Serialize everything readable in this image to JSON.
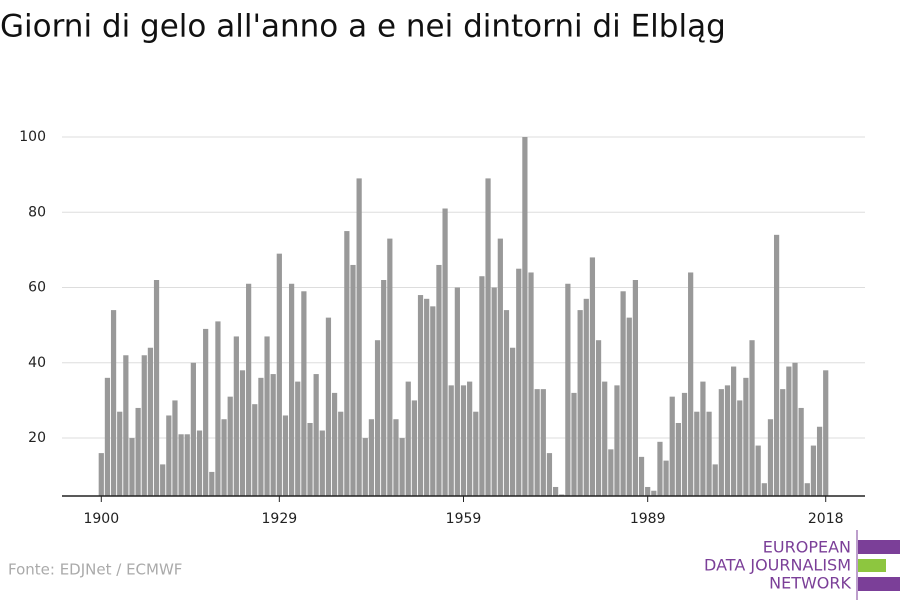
{
  "chart_data": {
    "type": "bar",
    "title": "Giorni di gelo all'anno a e nei dintorni di Elbląg",
    "source": "Fonte: EDJNet / ECMWF",
    "x": [
      1900,
      1901,
      1902,
      1903,
      1904,
      1905,
      1906,
      1907,
      1908,
      1909,
      1910,
      1911,
      1912,
      1913,
      1914,
      1915,
      1916,
      1917,
      1918,
      1919,
      1920,
      1921,
      1922,
      1923,
      1924,
      1925,
      1926,
      1927,
      1928,
      1929,
      1930,
      1931,
      1932,
      1933,
      1934,
      1935,
      1936,
      1937,
      1938,
      1939,
      1940,
      1941,
      1942,
      1943,
      1944,
      1945,
      1946,
      1947,
      1948,
      1949,
      1950,
      1951,
      1952,
      1953,
      1954,
      1955,
      1956,
      1957,
      1958,
      1959,
      1960,
      1961,
      1962,
      1963,
      1964,
      1965,
      1966,
      1967,
      1968,
      1969,
      1970,
      1971,
      1972,
      1973,
      1974,
      1975,
      1976,
      1977,
      1978,
      1979,
      1980,
      1981,
      1982,
      1983,
      1984,
      1985,
      1986,
      1987,
      1988,
      1989,
      1990,
      1991,
      1992,
      1993,
      1994,
      1995,
      1996,
      1997,
      1998,
      1999,
      2000,
      2001,
      2002,
      2003,
      2004,
      2005,
      2006,
      2007,
      2008,
      2009,
      2010,
      2011,
      2012,
      2013,
      2014,
      2015,
      2016,
      2017,
      2018
    ],
    "values": [
      16,
      36,
      54,
      27,
      42,
      20,
      28,
      42,
      44,
      62,
      13,
      26,
      30,
      21,
      21,
      40,
      22,
      49,
      11,
      51,
      25,
      31,
      47,
      38,
      61,
      29,
      36,
      47,
      37,
      69,
      26,
      61,
      35,
      59,
      24,
      37,
      22,
      52,
      32,
      27,
      75,
      66,
      89,
      20,
      25,
      46,
      62,
      73,
      25,
      20,
      35,
      30,
      58,
      57,
      55,
      66,
      81,
      34,
      60,
      34,
      35,
      27,
      63,
      89,
      60,
      73,
      54,
      44,
      65,
      100,
      64,
      33,
      33,
      16,
      7,
      5,
      61,
      32,
      54,
      57,
      68,
      46,
      35,
      17,
      34,
      59,
      52,
      62,
      15,
      7,
      6,
      19,
      14,
      31,
      24,
      32,
      64,
      27,
      35,
      27,
      13,
      33,
      34,
      39,
      30,
      36,
      46,
      18,
      8,
      25,
      74,
      33,
      39,
      40,
      28,
      8,
      18,
      23,
      38
    ],
    "color": "#999999",
    "xlim": [
      1893.6,
      2024.4
    ],
    "xticks": [
      1900,
      1929,
      1959,
      1989,
      2018
    ],
    "ylim": [
      4.6,
      100
    ],
    "yticks": [
      20,
      40,
      60,
      80,
      100
    ],
    "grid": true
  },
  "logo": [
    "EUROPEAN",
    "DATA JOURNALISM",
    "NETWORK"
  ]
}
